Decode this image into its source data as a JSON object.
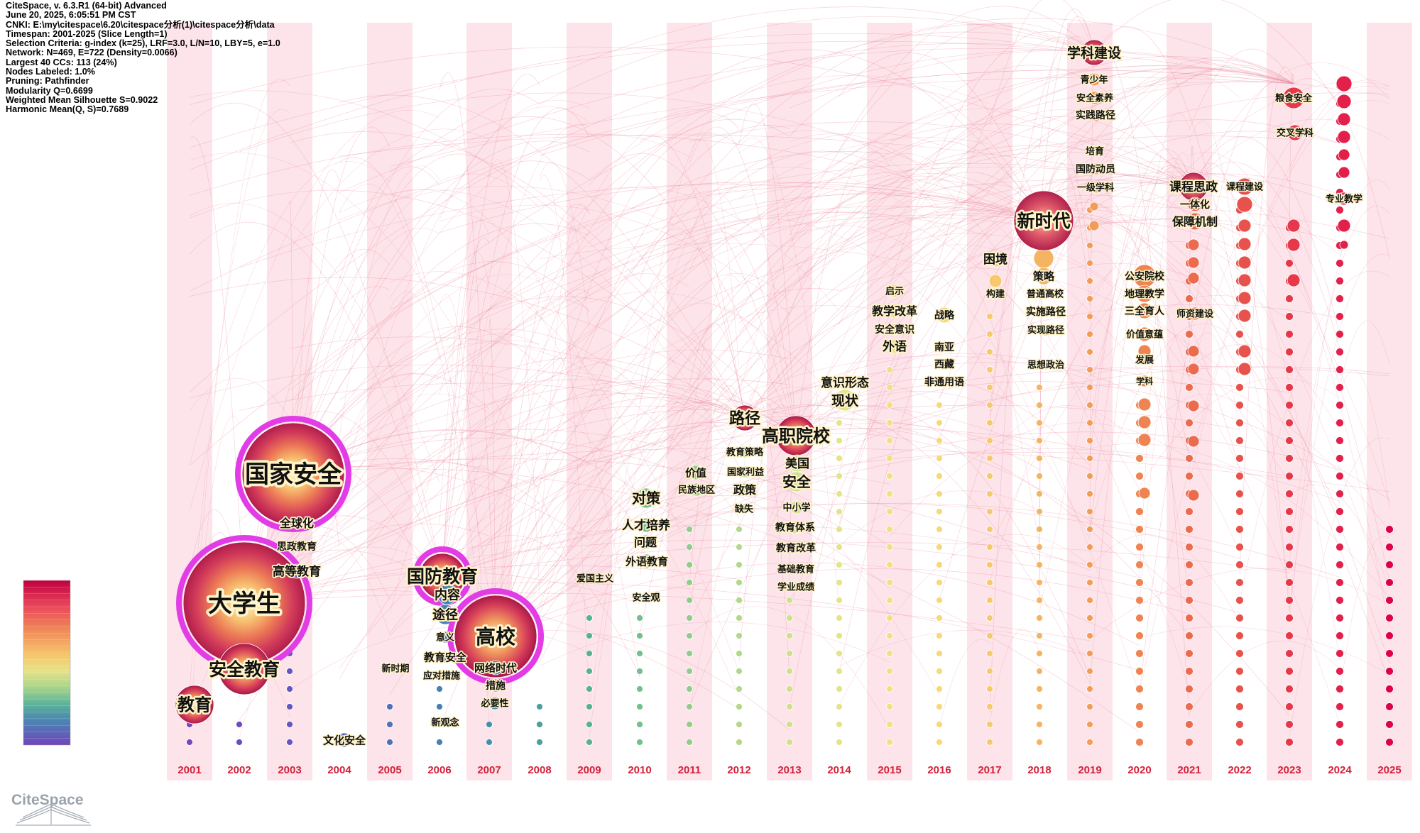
{
  "info": [
    "CiteSpace, v. 6.3.R1 (64-bit) Advanced",
    "June 20, 2025, 6:05:51 PM CST",
    "CNKI: E:\\my\\citespace\\6.20\\citespace分析(1)\\citespace分析\\data",
    "Timespan: 2001-2025 (Slice Length=1)",
    "Selection Criteria: g-index (k=25), LRF=3.0, L/N=10, LBY=5, e=1.0",
    "Network: N=469, E=722 (Density=0.0066)",
    "Largest 40 CCs: 113 (24%)",
    "Nodes Labeled: 1.0%",
    "Pruning: Pathfinder",
    "Modularity Q=0.6699",
    "Weighted Mean Silhouette S=0.9022",
    "Harmonic Mean(Q, S)=0.7689"
  ],
  "years": [
    "2001",
    "2002",
    "2003",
    "2004",
    "2005",
    "2006",
    "2007",
    "2008",
    "2009",
    "2010",
    "2011",
    "2012",
    "2013",
    "2014",
    "2015",
    "2016",
    "2017",
    "2018",
    "2019",
    "2020",
    "2021",
    "2022",
    "2023",
    "2024",
    "2025"
  ],
  "logo_text": "CiteSpace",
  "colors": {
    "stripe": "#fde4ea",
    "edge": "#e8839a",
    "year_label": "#d4203a",
    "purple_ring": "#e23ce6",
    "scale": [
      "#e0004a",
      "#e2204a",
      "#e6384a",
      "#e8524c",
      "#ec6a4e",
      "#ef8452",
      "#f29c58",
      "#f5b462",
      "#f8c86c",
      "#f8d878",
      "#f2e080",
      "#e4e488",
      "#cfe08a",
      "#b2d88a",
      "#92cc8a",
      "#72c08e",
      "#58b096",
      "#48a0a0",
      "#4490ac",
      "#4880b4",
      "#5270ba",
      "#5c62be",
      "#6656c0",
      "#6e4cc0",
      "#7646bc"
    ]
  },
  "keywords": [
    {
      "label": "国家安全",
      "year": "2003",
      "size": "huge",
      "ring": true
    },
    {
      "label": "大学生",
      "year": "2002",
      "size": "huge",
      "ring": true
    },
    {
      "label": "安全教育",
      "year": "2002",
      "size": "large",
      "ring": false
    },
    {
      "label": "教育",
      "year": "2001",
      "size": "medium",
      "ring": false
    },
    {
      "label": "全球化",
      "year": "2003",
      "size": "small"
    },
    {
      "label": "思政教育",
      "year": "2003",
      "size": "small"
    },
    {
      "label": "高等教育",
      "year": "2003",
      "size": "small"
    },
    {
      "label": "文化安全",
      "year": "2004",
      "size": "small"
    },
    {
      "label": "新时期",
      "year": "2005",
      "size": "small"
    },
    {
      "label": "国防教育",
      "year": "2006",
      "size": "medium",
      "ring": true
    },
    {
      "label": "内容",
      "year": "2006",
      "size": "small"
    },
    {
      "label": "途径",
      "year": "2006",
      "size": "small"
    },
    {
      "label": "意义",
      "year": "2006",
      "size": "small"
    },
    {
      "label": "教育安全",
      "year": "2006",
      "size": "small"
    },
    {
      "label": "应对措施",
      "year": "2006",
      "size": "small"
    },
    {
      "label": "新观念",
      "year": "2006",
      "size": "small"
    },
    {
      "label": "高校",
      "year": "2007",
      "size": "large",
      "ring": true
    },
    {
      "label": "网络时代",
      "year": "2007",
      "size": "small"
    },
    {
      "label": "措施",
      "year": "2007",
      "size": "small"
    },
    {
      "label": "必要性",
      "year": "2007",
      "size": "small"
    },
    {
      "label": "爱国主义",
      "year": "2009",
      "size": "small"
    },
    {
      "label": "对策",
      "year": "2010",
      "size": "small"
    },
    {
      "label": "人才培养",
      "year": "2010",
      "size": "small"
    },
    {
      "label": "问题",
      "year": "2010",
      "size": "small"
    },
    {
      "label": "外语教育",
      "year": "2010",
      "size": "small"
    },
    {
      "label": "安全观",
      "year": "2010",
      "size": "small"
    },
    {
      "label": "价值",
      "year": "2011",
      "size": "small"
    },
    {
      "label": "民族地区",
      "year": "2011",
      "size": "small"
    },
    {
      "label": "路径",
      "year": "2012",
      "size": "medium"
    },
    {
      "label": "教育策略",
      "year": "2012",
      "size": "small"
    },
    {
      "label": "国家利益",
      "year": "2012",
      "size": "small"
    },
    {
      "label": "政策",
      "year": "2012",
      "size": "small"
    },
    {
      "label": "缺失",
      "year": "2012",
      "size": "small"
    },
    {
      "label": "高职院校",
      "year": "2013",
      "size": "medium"
    },
    {
      "label": "美国",
      "year": "2013",
      "size": "small"
    },
    {
      "label": "安全",
      "year": "2013",
      "size": "small"
    },
    {
      "label": "中小学",
      "year": "2013",
      "size": "small"
    },
    {
      "label": "教育体系",
      "year": "2013",
      "size": "small"
    },
    {
      "label": "教育改革",
      "year": "2013",
      "size": "small"
    },
    {
      "label": "基础教育",
      "year": "2013",
      "size": "small"
    },
    {
      "label": "学业成绩",
      "year": "2013",
      "size": "small"
    },
    {
      "label": "意识形态",
      "year": "2014",
      "size": "small"
    },
    {
      "label": "现状",
      "year": "2014",
      "size": "small"
    },
    {
      "label": "启示",
      "year": "2015",
      "size": "small"
    },
    {
      "label": "教学改革",
      "year": "2015",
      "size": "small"
    },
    {
      "label": "安全意识",
      "year": "2015",
      "size": "small"
    },
    {
      "label": "外语",
      "year": "2015",
      "size": "small"
    },
    {
      "label": "战略",
      "year": "2016",
      "size": "small"
    },
    {
      "label": "南亚",
      "year": "2016",
      "size": "small"
    },
    {
      "label": "西藏",
      "year": "2016",
      "size": "small"
    },
    {
      "label": "非通用语",
      "year": "2016",
      "size": "small"
    },
    {
      "label": "困境",
      "year": "2017",
      "size": "small"
    },
    {
      "label": "构建",
      "year": "2017",
      "size": "small"
    },
    {
      "label": "新时代",
      "year": "2018",
      "size": "large"
    },
    {
      "label": "策略",
      "year": "2018",
      "size": "small"
    },
    {
      "label": "普通高校",
      "year": "2018",
      "size": "small"
    },
    {
      "label": "实施路径",
      "year": "2018",
      "size": "small"
    },
    {
      "label": "实现路径",
      "year": "2018",
      "size": "small"
    },
    {
      "label": "思想政治",
      "year": "2018",
      "size": "small"
    },
    {
      "label": "学科建设",
      "year": "2019",
      "size": "medium"
    },
    {
      "label": "青少年",
      "year": "2019",
      "size": "small"
    },
    {
      "label": "安全素养",
      "year": "2019",
      "size": "small"
    },
    {
      "label": "实践路径",
      "year": "2019",
      "size": "small"
    },
    {
      "label": "培育",
      "year": "2019",
      "size": "small"
    },
    {
      "label": "国防动员",
      "year": "2019",
      "size": "small"
    },
    {
      "label": "一级学科",
      "year": "2019",
      "size": "small"
    },
    {
      "label": "公安院校",
      "year": "2020",
      "size": "small"
    },
    {
      "label": "地理教学",
      "year": "2020",
      "size": "small"
    },
    {
      "label": "三全育人",
      "year": "2020",
      "size": "small"
    },
    {
      "label": "价值意蕴",
      "year": "2020",
      "size": "small"
    },
    {
      "label": "发展",
      "year": "2020",
      "size": "small"
    },
    {
      "label": "学科",
      "year": "2020",
      "size": "small"
    },
    {
      "label": "课程思政",
      "year": "2021",
      "size": "medium"
    },
    {
      "label": "一体化",
      "year": "2021",
      "size": "small"
    },
    {
      "label": "保障机制",
      "year": "2021",
      "size": "small"
    },
    {
      "label": "师资建设",
      "year": "2021",
      "size": "small"
    },
    {
      "label": "课程建设",
      "year": "2022",
      "size": "small"
    },
    {
      "label": "粮食安全",
      "year": "2023",
      "size": "small"
    },
    {
      "label": "交叉学科",
      "year": "2023",
      "size": "small"
    },
    {
      "label": "专业教学",
      "year": "2024",
      "size": "small"
    }
  ]
}
